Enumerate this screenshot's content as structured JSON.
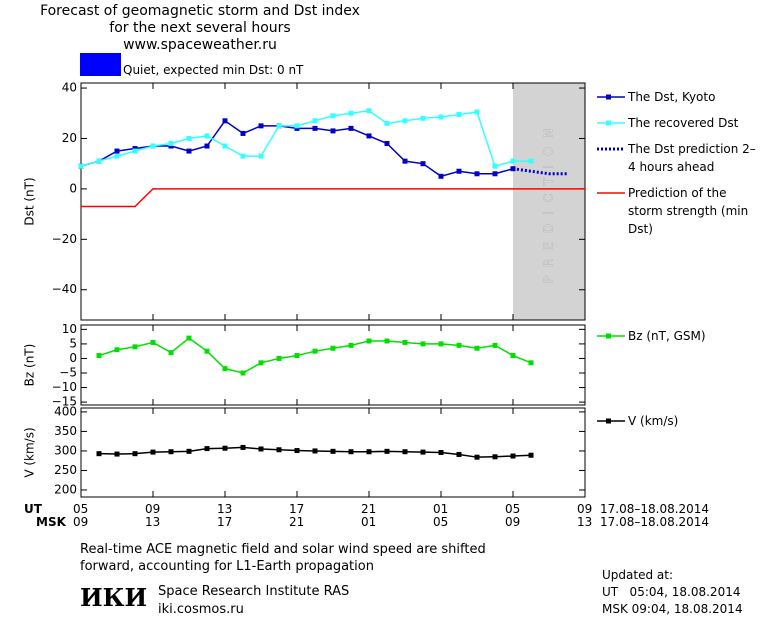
{
  "header": {
    "title_lines": [
      "Forecast of geomagnetic storm and Dst index",
      "for the next several hours",
      "www.spaceweather.ru"
    ],
    "status": {
      "color": "#0000ff",
      "text": "Quiet, expected min Dst: 0 nT"
    }
  },
  "chart_data": [
    {
      "type": "line",
      "ylabel": "Dst (nT)",
      "xlim": [
        5,
        33
      ],
      "ylim": [
        -52,
        42
      ],
      "yticks": [
        40,
        20,
        0,
        {
          "value": -20,
          "label": "−20"
        },
        {
          "value": -40,
          "label": "−40"
        }
      ],
      "legend": "right",
      "prediction_band": {
        "x": [
          29,
          33
        ],
        "label": "PREDICTION"
      },
      "series": [
        {
          "name": "The Dst, Kyoto",
          "color": "#0000c8",
          "marker": "square",
          "dashed": false,
          "x": [
            5,
            6,
            7,
            8,
            9,
            10,
            11,
            12,
            13,
            14,
            15,
            16,
            17,
            18,
            19,
            20,
            21,
            22,
            23,
            24,
            25,
            26,
            27,
            28,
            29
          ],
          "values": [
            9,
            11,
            15,
            16,
            17,
            17,
            15,
            17,
            27,
            22,
            25,
            25,
            24,
            24,
            23,
            24,
            21,
            18,
            11,
            10,
            5,
            7,
            6,
            6,
            8
          ]
        },
        {
          "name": "The recovered Dst",
          "color": "#33ffff",
          "marker": "square",
          "dashed": false,
          "x": [
            5,
            6,
            7,
            8,
            9,
            10,
            11,
            12,
            13,
            14,
            15,
            16,
            17,
            18,
            19,
            20,
            21,
            22,
            23,
            24,
            25,
            26,
            27,
            28,
            29,
            30
          ],
          "values": [
            9,
            11,
            13,
            15,
            17,
            18,
            20,
            21,
            17,
            13,
            13,
            25,
            25,
            27,
            29,
            30,
            31,
            26,
            27,
            28,
            28.5,
            29.5,
            30.5,
            9,
            11,
            11
          ]
        },
        {
          "name": "The Dst prediction 2–4 hours ahead",
          "color": "#0000c8",
          "marker": "none",
          "dashed": true,
          "x": [
            29,
            30,
            31,
            32
          ],
          "values": [
            8,
            7,
            6,
            6
          ]
        },
        {
          "name": "Prediction of the storm strength (min Dst)",
          "color": "#ff0000",
          "marker": "none",
          "dashed": false,
          "x": [
            5,
            8,
            9,
            33
          ],
          "values": [
            -7,
            -7,
            0,
            0
          ]
        }
      ]
    },
    {
      "type": "line",
      "ylabel": "Bz (nT)",
      "xlim": [
        5,
        33
      ],
      "ylim": [
        -16,
        11.5
      ],
      "yticks": [
        10,
        5,
        0,
        {
          "value": -5,
          "label": "−5"
        },
        {
          "value": -10,
          "label": "−10"
        },
        {
          "value": -15,
          "label": "−15"
        }
      ],
      "legend": "right",
      "series": [
        {
          "name": "Bz (nT, GSM)",
          "color": "#00e000",
          "marker": "square",
          "dashed": false,
          "x": [
            6,
            7,
            8,
            9,
            10,
            11,
            12,
            13,
            14,
            15,
            16,
            17,
            18,
            19,
            20,
            21,
            22,
            23,
            24,
            25,
            26,
            27,
            28,
            29,
            30
          ],
          "values": [
            1,
            3,
            4,
            5.5,
            2,
            7,
            2.5,
            -3.5,
            -5,
            -1.5,
            0,
            1,
            2.5,
            3.5,
            4.5,
            6,
            6,
            5.5,
            5,
            5,
            4.5,
            3.5,
            4.5,
            1,
            -1.5
          ]
        }
      ]
    },
    {
      "type": "line",
      "ylabel": "V (km/s)",
      "xlim": [
        5,
        33
      ],
      "ylim": [
        182,
        410
      ],
      "yticks": [
        400,
        350,
        300,
        250,
        200
      ],
      "legend": "right",
      "series": [
        {
          "name": "V (km/s)",
          "color": "#000000",
          "marker": "square",
          "dashed": false,
          "x": [
            6,
            7,
            8,
            9,
            10,
            11,
            12,
            13,
            14,
            15,
            16,
            17,
            18,
            19,
            20,
            21,
            22,
            23,
            24,
            25,
            26,
            27,
            28,
            29,
            30
          ],
          "values": [
            293,
            292,
            293,
            297,
            298,
            299,
            306,
            307,
            309,
            305,
            303,
            301,
            300,
            299,
            298,
            298,
            299,
            298,
            297,
            296,
            291,
            284,
            285,
            287,
            289
          ]
        }
      ]
    }
  ],
  "time_axis": {
    "ut_label": "UT",
    "msk_label": "MSK",
    "xticks": [
      {
        "value": 5,
        "label": "05"
      },
      {
        "value": 9,
        "label": "09"
      },
      13,
      17,
      21,
      {
        "value": 25,
        "label": "01"
      },
      {
        "value": 29,
        "label": "05"
      },
      {
        "value": 33,
        "label": "09"
      }
    ],
    "msk_ticklabels": [
      "09",
      "13",
      "17",
      "21",
      "01",
      "05",
      "09",
      "13"
    ],
    "date_range": "17.08–18.08.2014"
  },
  "footer": {
    "note_lines": [
      "Real-time ACE magnetic field and solar wind speed are shifted",
      "forward, accounting for L1-Earth propagation"
    ],
    "logo": "ИКИ",
    "institute": "Space Research Institute RAS",
    "site": "iki.cosmos.ru",
    "updated_label": "Updated at:",
    "updated_ut": "UT   05:04, 18.08.2014",
    "updated_msk": "MSK 09:04, 18.08.2014"
  }
}
